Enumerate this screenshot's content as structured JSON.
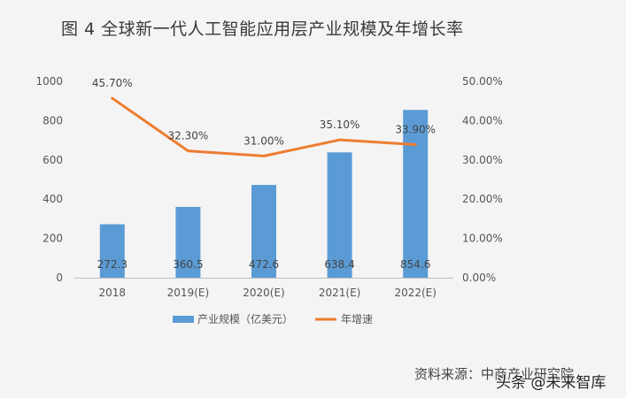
{
  "title": "图 4 全球新一代人工智能应用层产业规模及年增长率",
  "source": "资料来源：中商产业研究院",
  "watermark": "头条 @未来智库",
  "colors": {
    "bar": "#5b9bd5",
    "line": "#ed7d31"
  },
  "chart_data": {
    "type": "bar",
    "categories": [
      "2018",
      "2019(E)",
      "2020(E)",
      "2021(E)",
      "2022(E)"
    ],
    "series": [
      {
        "name": "产业规模（亿美元）",
        "type": "bar",
        "axis": "left",
        "values": [
          272.3,
          360.5,
          472.6,
          638.4,
          854.6
        ],
        "labels": [
          "272.3",
          "360.5",
          "472.6",
          "638.4",
          "854.6"
        ]
      },
      {
        "name": "年增速",
        "type": "line",
        "axis": "right",
        "values": [
          45.7,
          32.3,
          31.0,
          35.1,
          33.9
        ],
        "labels": [
          "45.70%",
          "32.30%",
          "31.00%",
          "35.10%",
          "33.90%"
        ]
      }
    ],
    "y_left": {
      "range": [
        0,
        1000
      ],
      "ticks": [
        "0",
        "200",
        "400",
        "600",
        "800",
        "1000"
      ]
    },
    "y_right": {
      "range": [
        0,
        50
      ],
      "ticks": [
        "0.00%",
        "10.00%",
        "20.00%",
        "30.00%",
        "40.00%",
        "50.00%"
      ]
    },
    "legend": "bottom",
    "grid": false
  }
}
